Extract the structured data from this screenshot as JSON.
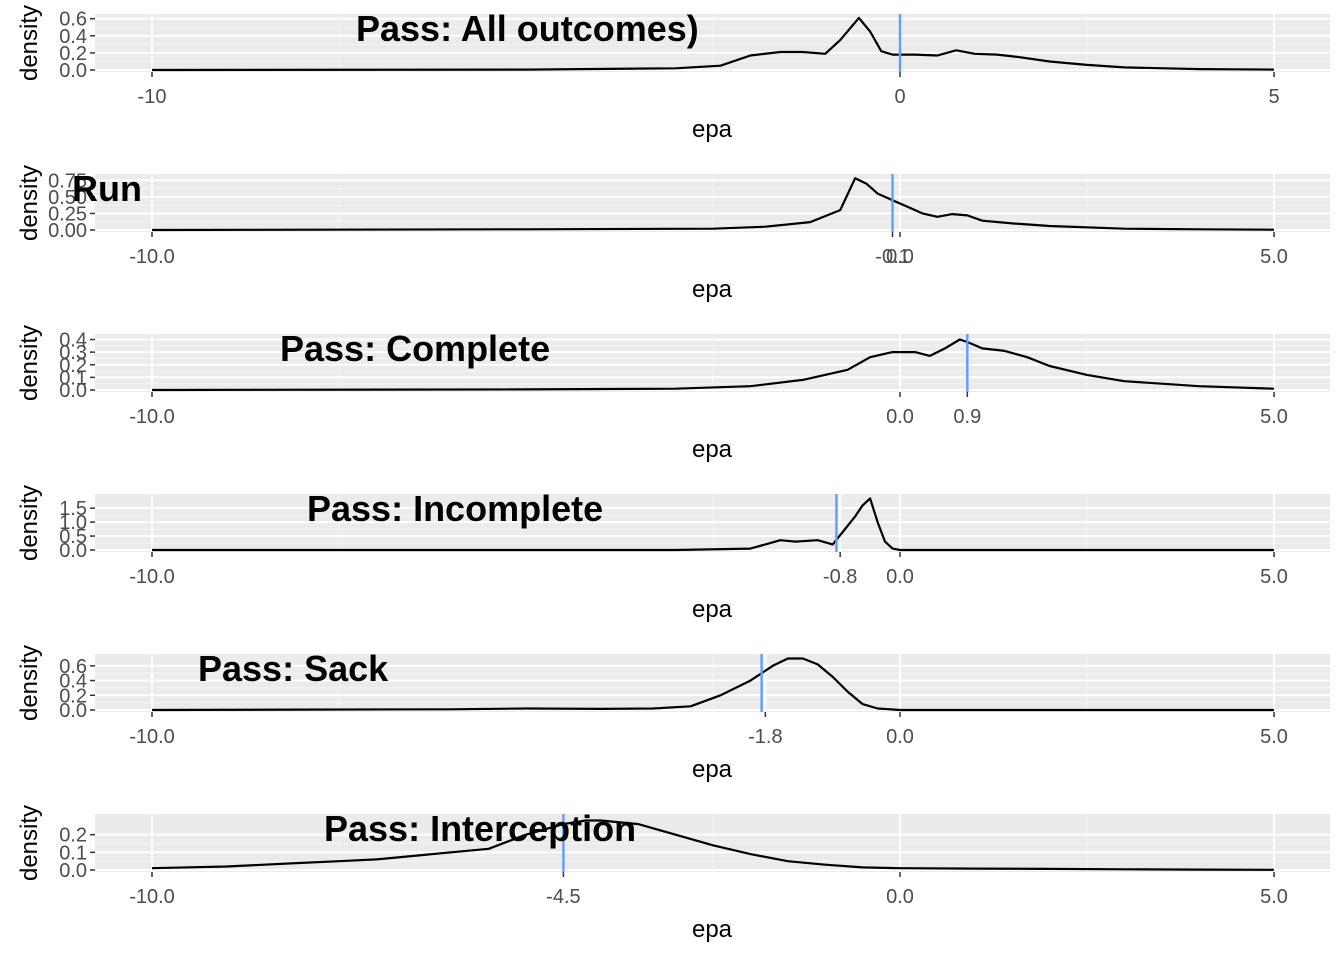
{
  "chart_data": [
    {
      "type": "area",
      "title": "Pass: All outcomes)",
      "xlabel": "epa",
      "ylabel": "density",
      "xlim": [
        -10,
        5
      ],
      "ylim": [
        0,
        0.62
      ],
      "x_ticks": [
        -10,
        0,
        5
      ],
      "x_tick_labels": [
        "-10",
        "0",
        "5"
      ],
      "y_ticks": [
        0,
        0.2,
        0.4,
        0.6
      ],
      "y_tick_labels": [
        "0.0",
        "0.2",
        "0.4",
        "0.6"
      ],
      "mean_line": 0,
      "mean_color": "#619CFF",
      "grid": true,
      "curve": {
        "x": [
          -10,
          -5,
          -3,
          -2.4,
          -2.0,
          -1.6,
          -1.3,
          -1.0,
          -0.8,
          -0.55,
          -0.4,
          -0.25,
          -0.1,
          0,
          0.2,
          0.5,
          0.75,
          1.0,
          1.3,
          1.6,
          2.0,
          2.5,
          3.0,
          4.0,
          5.0
        ],
        "y": [
          0,
          0.005,
          0.02,
          0.05,
          0.17,
          0.21,
          0.21,
          0.19,
          0.35,
          0.61,
          0.45,
          0.22,
          0.18,
          0.18,
          0.18,
          0.17,
          0.23,
          0.19,
          0.18,
          0.15,
          0.1,
          0.06,
          0.03,
          0.01,
          0.005
        ]
      }
    },
    {
      "type": "area",
      "title": "Run",
      "xlabel": "epa",
      "ylabel": "density",
      "xlim": [
        -10,
        5
      ],
      "ylim": [
        0,
        0.8
      ],
      "x_ticks": [
        -10,
        -0.1,
        0,
        5
      ],
      "x_tick_labels": [
        "-10.0",
        "-0.1",
        "0.0",
        "5.0"
      ],
      "y_ticks": [
        0,
        0.25,
        0.5,
        0.75
      ],
      "y_tick_labels": [
        "0.00",
        "0.25",
        "0.50",
        "0.75"
      ],
      "mean_line": -0.1,
      "mean_color": "#619CFF",
      "grid": true,
      "curve": {
        "x": [
          -10,
          -5,
          -2.5,
          -1.8,
          -1.2,
          -0.8,
          -0.6,
          -0.45,
          -0.3,
          -0.1,
          0.1,
          0.3,
          0.5,
          0.7,
          0.9,
          1.1,
          1.5,
          2.0,
          3.0,
          4.0,
          5.0
        ],
        "y": [
          0,
          0.01,
          0.02,
          0.05,
          0.12,
          0.3,
          0.78,
          0.7,
          0.55,
          0.45,
          0.35,
          0.25,
          0.2,
          0.24,
          0.22,
          0.14,
          0.1,
          0.06,
          0.02,
          0.01,
          0.005
        ]
      }
    },
    {
      "type": "area",
      "title": "Pass: Complete",
      "xlabel": "epa",
      "ylabel": "density",
      "xlim": [
        -10,
        5
      ],
      "ylim": [
        0,
        0.42
      ],
      "x_ticks": [
        -10,
        0,
        0.9,
        5
      ],
      "x_tick_labels": [
        "-10.0",
        "0.0",
        "0.9",
        "5.0"
      ],
      "y_ticks": [
        0,
        0.1,
        0.2,
        0.3,
        0.4
      ],
      "y_tick_labels": [
        "0.0",
        "0.1",
        "0.2",
        "0.3",
        "0.4"
      ],
      "mean_line": 0.9,
      "mean_color": "#619CFF",
      "grid": true,
      "curve": {
        "x": [
          -10,
          -5,
          -3,
          -2,
          -1.3,
          -0.7,
          -0.4,
          -0.1,
          0.2,
          0.4,
          0.6,
          0.8,
          0.9,
          1.1,
          1.4,
          1.7,
          2.0,
          2.5,
          3.0,
          4.0,
          5.0
        ],
        "y": [
          0,
          0.005,
          0.01,
          0.03,
          0.08,
          0.16,
          0.26,
          0.3,
          0.3,
          0.27,
          0.33,
          0.4,
          0.38,
          0.33,
          0.31,
          0.26,
          0.19,
          0.12,
          0.07,
          0.03,
          0.01
        ]
      }
    },
    {
      "type": "area",
      "title": "Pass: Incomplete",
      "xlabel": "epa",
      "ylabel": "density",
      "xlim": [
        -10,
        5
      ],
      "ylim": [
        0,
        1.9
      ],
      "x_ticks": [
        -10,
        -0.8,
        0,
        5
      ],
      "x_tick_labels": [
        "-10.0",
        "-0.8",
        "0.0",
        "5.0"
      ],
      "y_ticks": [
        0,
        0.5,
        1.0,
        1.5
      ],
      "y_tick_labels": [
        "0.0",
        "0.5",
        "1.0",
        "1.5"
      ],
      "mean_line": -0.85,
      "mean_color": "#619CFF",
      "grid": true,
      "curve": {
        "x": [
          -10,
          -3,
          -2.0,
          -1.6,
          -1.4,
          -1.1,
          -0.9,
          -0.75,
          -0.6,
          -0.5,
          -0.4,
          -0.3,
          -0.2,
          -0.1,
          0,
          5
        ],
        "y": [
          0,
          0,
          0.05,
          0.35,
          0.3,
          0.35,
          0.2,
          0.7,
          1.2,
          1.6,
          1.85,
          1.0,
          0.3,
          0.05,
          0,
          0
        ]
      }
    },
    {
      "type": "area",
      "title": "Pass: Sack",
      "xlabel": "epa",
      "ylabel": "density",
      "xlim": [
        -10,
        5
      ],
      "ylim": [
        0,
        0.72
      ],
      "x_ticks": [
        -10,
        -1.8,
        0,
        5
      ],
      "x_tick_labels": [
        "-10.0",
        "-1.8",
        "0.0",
        "5.0"
      ],
      "y_ticks": [
        0,
        0.2,
        0.4,
        0.6
      ],
      "y_tick_labels": [
        "0.0",
        "0.2",
        "0.4",
        "0.6"
      ],
      "mean_line": -1.85,
      "mean_color": "#619CFF",
      "grid": true,
      "curve": {
        "x": [
          -10,
          -8,
          -6,
          -5,
          -4,
          -3.3,
          -2.8,
          -2.4,
          -2.0,
          -1.7,
          -1.5,
          -1.3,
          -1.1,
          -0.9,
          -0.7,
          -0.5,
          -0.3,
          0,
          5
        ],
        "y": [
          0,
          0.005,
          0.01,
          0.02,
          0.015,
          0.02,
          0.05,
          0.2,
          0.4,
          0.6,
          0.7,
          0.7,
          0.62,
          0.45,
          0.25,
          0.08,
          0.02,
          0,
          0
        ]
      }
    },
    {
      "type": "area",
      "title": "Pass: Interception",
      "xlabel": "epa",
      "ylabel": "density",
      "xlim": [
        -10,
        5
      ],
      "ylim": [
        0,
        0.3
      ],
      "x_ticks": [
        -10,
        -4.5,
        0,
        5
      ],
      "x_tick_labels": [
        "-10.0",
        "-4.5",
        "0.0",
        "5.0"
      ],
      "y_ticks": [
        0,
        0.1,
        0.2
      ],
      "y_tick_labels": [
        "0.0",
        "0.1",
        "0.2"
      ],
      "mean_line": -4.5,
      "mean_color": "#619CFF",
      "grid": true,
      "curve": {
        "x": [
          -10,
          -9,
          -8,
          -7.5,
          -7,
          -6.5,
          -6,
          -5.5,
          -5,
          -4.5,
          -4.2,
          -4.0,
          -3.5,
          -3,
          -2.5,
          -2,
          -1.5,
          -1,
          -0.5,
          0,
          1,
          2,
          3,
          4,
          5
        ],
        "y": [
          0.01,
          0.02,
          0.04,
          0.05,
          0.06,
          0.08,
          0.1,
          0.12,
          0.2,
          0.26,
          0.28,
          0.28,
          0.26,
          0.2,
          0.14,
          0.09,
          0.05,
          0.03,
          0.015,
          0.01,
          0.008,
          0.006,
          0.004,
          0.002,
          0.001
        ]
      }
    }
  ]
}
